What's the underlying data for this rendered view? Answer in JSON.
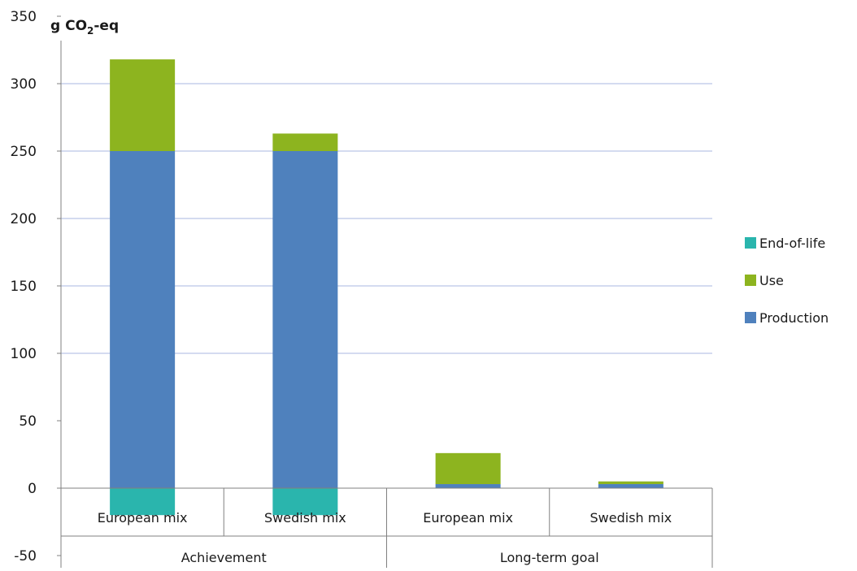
{
  "chart_data": {
    "type": "bar",
    "stacked": true,
    "unit_label": "g CO",
    "unit_sub": "2",
    "unit_suffix": "-eq",
    "ylim": [
      -50,
      350
    ],
    "yticks": [
      -50,
      0,
      50,
      100,
      150,
      200,
      250,
      300,
      350
    ],
    "gridlines": [
      100,
      150,
      200,
      250,
      300
    ],
    "categories": [
      "European mix",
      "Swedish mix",
      "European mix",
      "Swedish mix"
    ],
    "groups": [
      {
        "label": "Achievement",
        "span": [
          0,
          1
        ]
      },
      {
        "label": "Long-term goal",
        "span": [
          2,
          3
        ]
      }
    ],
    "series": [
      {
        "name": "Production",
        "color": "#4f81bd",
        "values": [
          250,
          250,
          3,
          3
        ]
      },
      {
        "name": "Use",
        "color": "#8db41f",
        "values": [
          68,
          13,
          23,
          2
        ]
      },
      {
        "name": "End-of-life",
        "color": "#2ab5ad",
        "values": [
          -20,
          -20,
          0,
          0
        ]
      }
    ],
    "legend": {
      "position": "right",
      "order": [
        "End-of-life",
        "Use",
        "Production"
      ]
    },
    "grid": true
  }
}
